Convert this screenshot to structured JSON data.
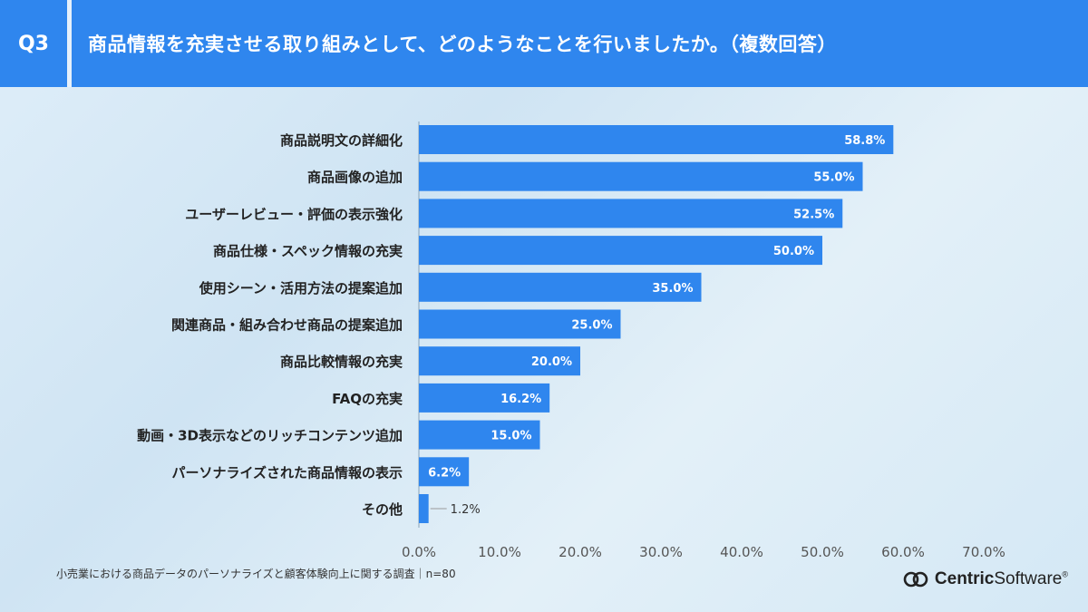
{
  "header": {
    "question_label": "Q3",
    "title": "商品情報を充実させる取り組みとして、どのようなことを行いましたか。（複数回答）"
  },
  "chart_data": {
    "type": "bar",
    "orientation": "horizontal",
    "categories": [
      "商品説明文の詳細化",
      "商品画像の追加",
      "ユーザーレビュー・評価の表示強化",
      "商品仕様・スペック情報の充実",
      "使用シーン・活用方法の提案追加",
      "関連商品・組み合わせ商品の提案追加",
      "商品比較情報の充実",
      "FAQの充実",
      "動画・3D表示などのリッチコンテンツ追加",
      "パーソナライズされた商品情報の表示",
      "その他"
    ],
    "values": [
      58.8,
      55.0,
      52.5,
      50.0,
      35.0,
      25.0,
      20.0,
      16.2,
      15.0,
      6.2,
      1.2
    ],
    "value_labels": [
      "58.8%",
      "55.0%",
      "52.5%",
      "50.0%",
      "35.0%",
      "25.0%",
      "20.0%",
      "16.2%",
      "15.0%",
      "6.2%",
      "1.2%"
    ],
    "xlim": [
      0,
      70
    ],
    "x_ticks": [
      "0.0%",
      "10.0%",
      "20.0%",
      "30.0%",
      "40.0%",
      "50.0%",
      "60.0%",
      "70.0%"
    ],
    "bar_color": "#2f86ee",
    "grid": false,
    "legend": "none"
  },
  "footer": {
    "note": "小売業における商品データのパーソナライズと顧客体験向上に関する調査｜n=80",
    "brand_bold": "Centric",
    "brand_light": "Software",
    "brand_mark": "®"
  }
}
